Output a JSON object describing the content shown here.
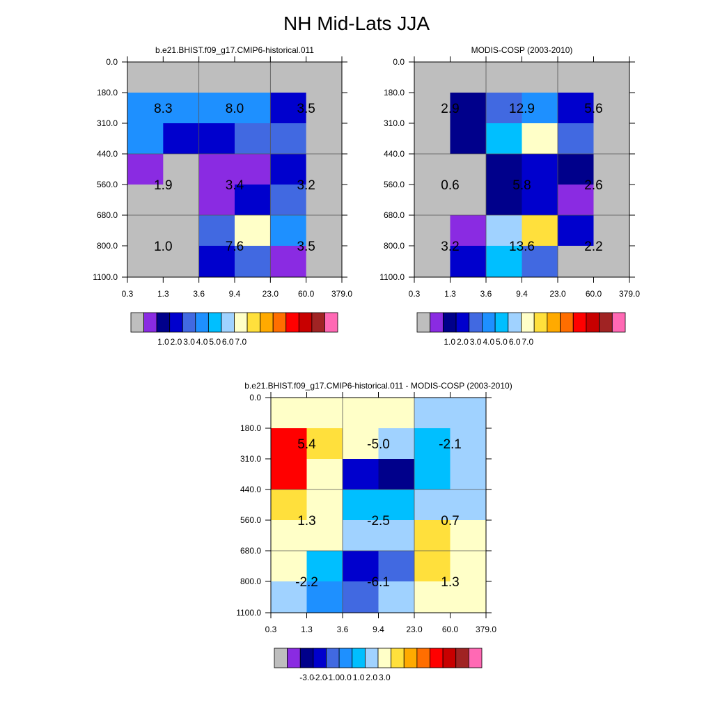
{
  "title": "NH Mid-Lats JJA",
  "chart_data": [
    {
      "type": "heatmap",
      "title": "b.e21.BHIST.f09_g17.CMIP6-historical.011",
      "x_tick_labels": [
        "0.3",
        "1.3",
        "3.6",
        "9.4",
        "23.0",
        "60.0",
        "379.0"
      ],
      "y_tick_labels": [
        "0.0",
        "180.0",
        "310.0",
        "440.0",
        "560.0",
        "680.0",
        "800.0",
        "1100.0"
      ],
      "cell_color_indices": [
        [
          0,
          0,
          0,
          0,
          0,
          0
        ],
        [
          5,
          5,
          5,
          5,
          3,
          0
        ],
        [
          5,
          3,
          3,
          4,
          4,
          0
        ],
        [
          1,
          0,
          1,
          1,
          3,
          0
        ],
        [
          0,
          0,
          1,
          3,
          4,
          0
        ],
        [
          0,
          0,
          4,
          8,
          5,
          0
        ],
        [
          0,
          0,
          3,
          4,
          1,
          0
        ]
      ],
      "block_labels": [
        [
          "8.3",
          "8.0",
          "3.5"
        ],
        [
          "1.9",
          "3.4",
          "3.2"
        ],
        [
          "1.0",
          "7.6",
          "3.5"
        ]
      ],
      "colorbar": {
        "colors": [
          "#bebebe",
          "#8a2be2",
          "#00008b",
          "#0000cd",
          "#4169e1",
          "#1e90ff",
          "#00bfff",
          "#a0d2ff",
          "#ffffc8",
          "#ffe03c",
          "#ffaa00",
          "#ff6e00",
          "#ff0000",
          "#c80000",
          "#a02323",
          "#ff69b4"
        ],
        "labels": [
          "1.0",
          "2.0",
          "3.0",
          "4.0",
          "5.0",
          "6.0",
          "7.0"
        ]
      }
    },
    {
      "type": "heatmap",
      "title": "MODIS-COSP (2003-2010)",
      "x_tick_labels": [
        "0.3",
        "1.3",
        "3.6",
        "9.4",
        "23.0",
        "60.0",
        "379.0"
      ],
      "y_tick_labels": [
        "0.0",
        "180.0",
        "310.0",
        "440.0",
        "560.0",
        "680.0",
        "800.0",
        "1100.0"
      ],
      "cell_color_indices": [
        [
          0,
          0,
          0,
          0,
          0,
          0
        ],
        [
          0,
          2,
          4,
          5,
          3,
          0
        ],
        [
          0,
          2,
          6,
          8,
          4,
          0
        ],
        [
          0,
          0,
          2,
          3,
          2,
          0
        ],
        [
          0,
          0,
          2,
          3,
          1,
          0
        ],
        [
          0,
          1,
          7,
          9,
          3,
          0
        ],
        [
          0,
          3,
          6,
          4,
          0,
          0
        ]
      ],
      "block_labels": [
        [
          "2.9",
          "12.9",
          "5.6"
        ],
        [
          "0.6",
          "5.8",
          "2.6"
        ],
        [
          "3.2",
          "13.6",
          "2.2"
        ]
      ],
      "colorbar": {
        "colors": [
          "#bebebe",
          "#8a2be2",
          "#00008b",
          "#0000cd",
          "#4169e1",
          "#1e90ff",
          "#00bfff",
          "#a0d2ff",
          "#ffffc8",
          "#ffe03c",
          "#ffaa00",
          "#ff6e00",
          "#ff0000",
          "#c80000",
          "#a02323",
          "#ff69b4"
        ],
        "labels": [
          "1.0",
          "2.0",
          "3.0",
          "4.0",
          "5.0",
          "6.0",
          "7.0"
        ]
      }
    },
    {
      "type": "heatmap",
      "title": "b.e21.BHIST.f09_g17.CMIP6-historical.011 - MODIS-COSP (2003-2010)",
      "x_tick_labels": [
        "0.3",
        "1.3",
        "3.6",
        "9.4",
        "23.0",
        "60.0",
        "379.0"
      ],
      "y_tick_labels": [
        "0.0",
        "180.0",
        "310.0",
        "440.0",
        "560.0",
        "680.0",
        "800.0",
        "1100.0"
      ],
      "cell_color_indices": [
        [
          8,
          8,
          8,
          8,
          7,
          7
        ],
        [
          12,
          9,
          8,
          7,
          6,
          7
        ],
        [
          12,
          8,
          3,
          2,
          6,
          7
        ],
        [
          9,
          8,
          6,
          6,
          7,
          7
        ],
        [
          8,
          8,
          7,
          7,
          9,
          8
        ],
        [
          8,
          6,
          3,
          4,
          9,
          8
        ],
        [
          7,
          5,
          4,
          7,
          8,
          8
        ]
      ],
      "block_labels": [
        [
          "5.4",
          "-5.0",
          "-2.1"
        ],
        [
          "1.3",
          "-2.5",
          "0.7"
        ],
        [
          "-2.2",
          "-6.1",
          "1.3"
        ]
      ],
      "colorbar": {
        "colors": [
          "#bebebe",
          "#8a2be2",
          "#00008b",
          "#0000cd",
          "#4169e1",
          "#1e90ff",
          "#00bfff",
          "#a0d2ff",
          "#ffffc8",
          "#ffe03c",
          "#ffaa00",
          "#ff6e00",
          "#ff0000",
          "#c80000",
          "#a02323",
          "#ff69b4"
        ],
        "labels": [
          "-3.0",
          "-2.0",
          "-1.0",
          "0.0",
          "1.0",
          "2.0",
          "3.0"
        ]
      }
    }
  ]
}
